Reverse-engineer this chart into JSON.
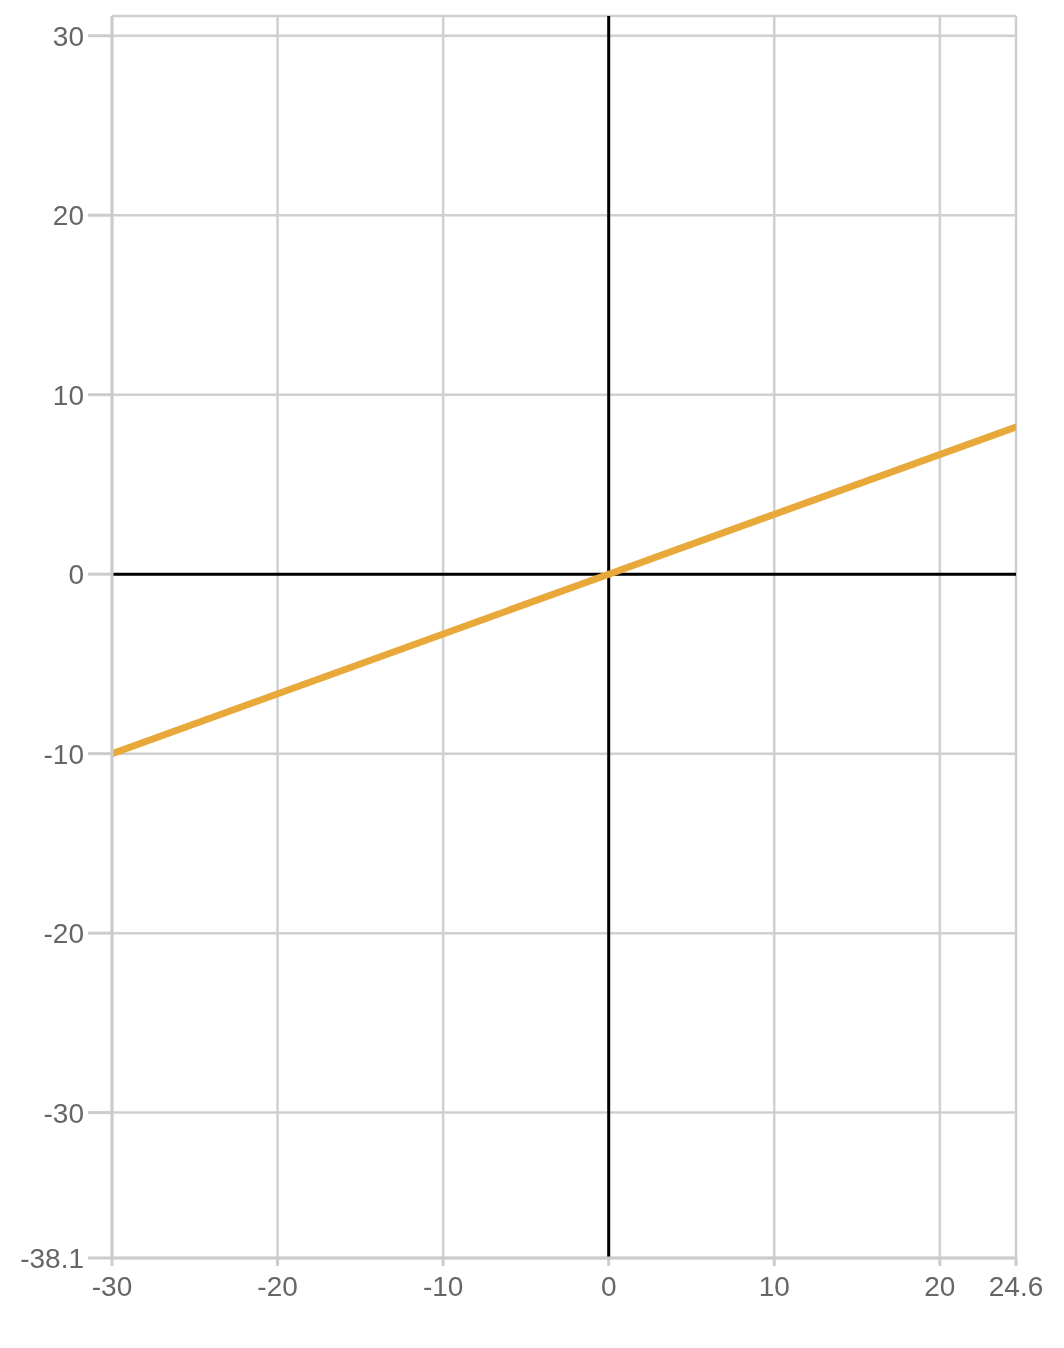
{
  "chart_data": {
    "type": "line",
    "x": [
      -30,
      0,
      24.6
    ],
    "series": [
      {
        "color": "#e8a83a",
        "values": [
          -10,
          0,
          8.2
        ]
      }
    ],
    "xlim": [
      -30,
      24.6
    ],
    "xticks": [
      -30,
      -20,
      -10,
      0,
      10,
      20,
      24.6
    ],
    "ylim": [
      -38.1,
      31.1
    ],
    "yticks": [
      -38.1,
      -30,
      -20,
      -10,
      0,
      10,
      20,
      30
    ],
    "grid": true,
    "marker": "none",
    "line_style": "solid"
  }
}
